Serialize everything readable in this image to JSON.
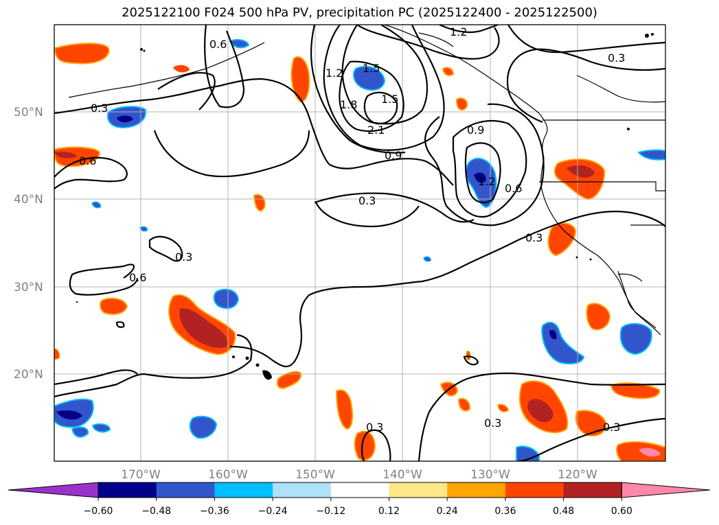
{
  "title": "2025122100 F024 500 hPa PV, precipitation PC (2025122400 - 2025122500)",
  "lat_labels": [
    "50°N",
    "40°N",
    "30°N",
    "20°N"
  ],
  "lon_labels": [
    "170°W",
    "160°W",
    "150°W",
    "140°W",
    "130°W",
    "120°W"
  ],
  "contour_labels": [
    "0.6",
    "1.2",
    "1.5",
    "1.2",
    "1.8",
    "1.5",
    "2.1",
    "0.9",
    "0.9",
    "1.2",
    "0.6",
    "0.3",
    "0.3",
    "0.6",
    "0.3",
    "0.3",
    "0.6",
    "0.3",
    "0.3",
    "0.3",
    "0.3"
  ],
  "colorbar": {
    "ticks": [
      "−0.60",
      "−0.48",
      "−0.36",
      "−0.24",
      "−0.12",
      "0.12",
      "0.24",
      "0.36",
      "0.48",
      "0.60"
    ],
    "colors": [
      "#9933cc",
      "#00008b",
      "#3355cc",
      "#00bfff",
      "#aee2fa",
      "#ffffff",
      "#ffe88a",
      "#ffa500",
      "#ff4500",
      "#b22222",
      "#ff88aa"
    ]
  },
  "colors": {
    "land_line": "#000000",
    "grid": "#b0b0b0",
    "contour": "#000000"
  }
}
